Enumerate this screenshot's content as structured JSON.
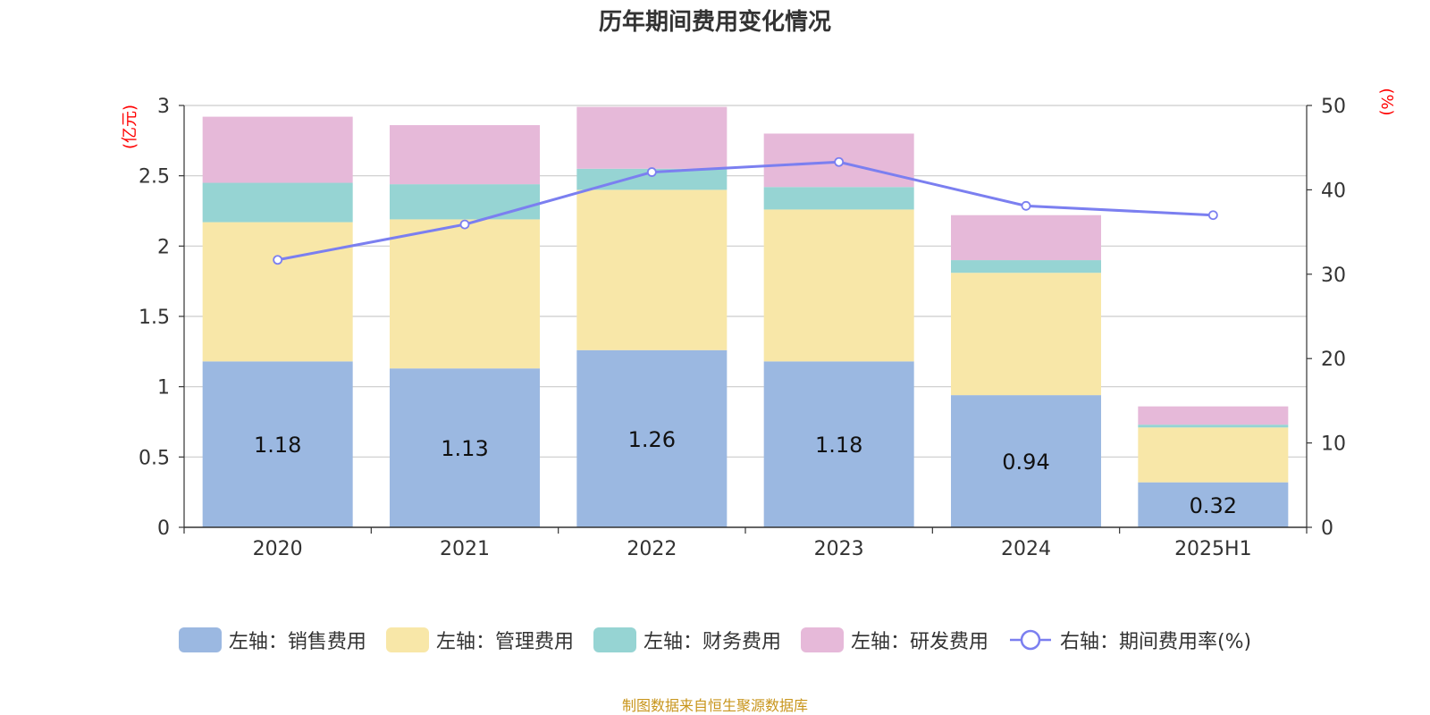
{
  "title": "历年期间费用变化情况",
  "source_note": "制图数据来自恒生聚源数据库",
  "colors": {
    "sales": "#9bb8e1",
    "admin": "#f8e7a8",
    "finance": "#96d4d3",
    "rnd": "#e6b9d9",
    "rate": "#7b7ff0",
    "axis_unit": "#ff0000"
  },
  "legend": [
    {
      "key": "sales",
      "label": "左轴：销售费用"
    },
    {
      "key": "admin",
      "label": "左轴：管理费用"
    },
    {
      "key": "finance",
      "label": "左轴：财务费用"
    },
    {
      "key": "rnd",
      "label": "左轴：研发费用"
    },
    {
      "key": "rate",
      "label": "右轴：期间费用率(%)"
    }
  ],
  "chart_data": {
    "type": "bar",
    "stacked": true,
    "title": "历年期间费用变化情况",
    "categories": [
      "2020",
      "2021",
      "2022",
      "2023",
      "2024",
      "2025H1"
    ],
    "left_axis": {
      "unit": "(亿元)",
      "ylim": [
        0,
        3
      ],
      "ticks": [
        0,
        0.5,
        1,
        1.5,
        2,
        2.5,
        3
      ],
      "tick_labels": [
        "0",
        "0.5",
        "1",
        "1.5",
        "2",
        "2.5",
        "3"
      ]
    },
    "right_axis": {
      "unit": "(%)",
      "ylim": [
        0,
        50
      ],
      "ticks": [
        0,
        10,
        20,
        30,
        40,
        50
      ],
      "tick_labels": [
        "0",
        "10",
        "20",
        "30",
        "40",
        "50"
      ]
    },
    "grid": true,
    "legend_position": "bottom",
    "series": [
      {
        "key": "sales",
        "name": "左轴：销售费用",
        "axis": "left",
        "type": "bar",
        "values": [
          1.18,
          1.13,
          1.26,
          1.18,
          0.94,
          0.32
        ],
        "data_labels": [
          "1.18",
          "1.13",
          "1.26",
          "1.18",
          "0.94",
          "0.32"
        ]
      },
      {
        "key": "admin",
        "name": "左轴：管理费用",
        "axis": "left",
        "type": "bar",
        "values": [
          0.99,
          1.06,
          1.14,
          1.08,
          0.87,
          0.39
        ]
      },
      {
        "key": "finance",
        "name": "左轴：财务费用",
        "axis": "left",
        "type": "bar",
        "values": [
          0.28,
          0.25,
          0.15,
          0.16,
          0.09,
          0.02
        ]
      },
      {
        "key": "rnd",
        "name": "左轴：研发费用",
        "axis": "left",
        "type": "bar",
        "values": [
          0.47,
          0.42,
          0.44,
          0.38,
          0.32,
          0.13
        ]
      },
      {
        "key": "rate",
        "name": "右轴：期间费用率(%)",
        "axis": "right",
        "type": "line",
        "values": [
          31.7,
          35.9,
          42.1,
          43.3,
          38.1,
          37.0
        ]
      }
    ]
  }
}
